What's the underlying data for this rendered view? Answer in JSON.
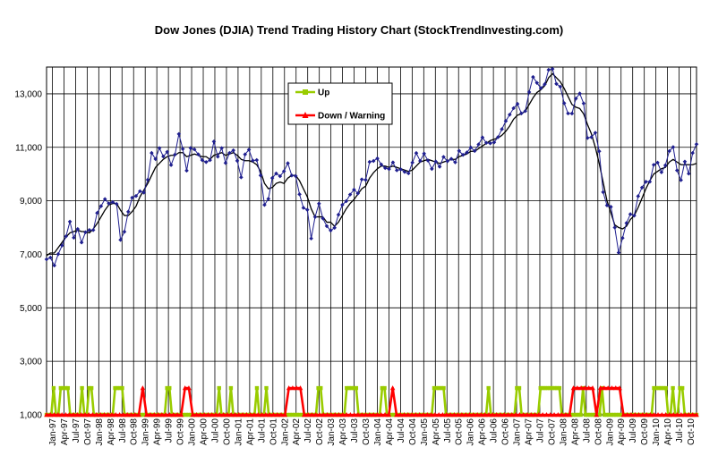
{
  "chart_data": {
    "type": "line",
    "title": "Dow Jones (DJIA) Trend Trading History Chart (StockTrendInvesting.com)",
    "xlabel": "",
    "ylabel": "",
    "ylim": [
      1000,
      14000
    ],
    "yticks": [
      1000,
      3000,
      5000,
      7000,
      9000,
      11000,
      13000
    ],
    "ytick_labels": [
      "1,000",
      "3,000",
      "5,000",
      "7,000",
      "9,000",
      "11,000",
      "13,000"
    ],
    "x_ticks": [
      "Jan-97",
      "Apr-97",
      "Jul-97",
      "Oct-97",
      "Jan-98",
      "Apr-98",
      "Jul-98",
      "Oct-98",
      "Jan-99",
      "Apr-99",
      "Jul-99",
      "Oct-99",
      "Jan-00",
      "Apr-00",
      "Jul-00",
      "Oct-00",
      "Jan-01",
      "Apr-01",
      "Jul-01",
      "Oct-01",
      "Jan-02",
      "Apr-02",
      "Jul-02",
      "Oct-02",
      "Jan-03",
      "Apr-03",
      "Jul-03",
      "Oct-03",
      "Jan-04",
      "Apr-04",
      "Jul-04",
      "Oct-04",
      "Jan-05",
      "Apr-05",
      "Jul-05",
      "Oct-05",
      "Jan-06",
      "Apr-06",
      "Jul-06",
      "Oct-06",
      "Jan-07",
      "Apr-07",
      "Jul-07",
      "Oct-07",
      "Jan-08",
      "Apr-08",
      "Jul-08",
      "Oct-08",
      "Jan-09",
      "Apr-09",
      "Jul-09",
      "Oct-09",
      "Jan-10",
      "Apr-10",
      "Jul-10",
      "Oct-10"
    ],
    "grid": true,
    "legend_position": "top-left",
    "colors": {
      "djia": "#1f1f8f",
      "trend": "#000000",
      "up": "#99cc00",
      "down": "#ff0000",
      "grid": "#000000"
    },
    "series": [
      {
        "name": "",
        "kind": "points",
        "values": [
          6813,
          6878,
          6583,
          7009,
          7331,
          7672,
          8222,
          7622,
          7945,
          7442,
          7823,
          7908,
          7907,
          8546,
          8800,
          9063,
          8900,
          8952,
          8883,
          7539,
          7843,
          8592,
          9117,
          9181,
          9359,
          9307,
          9786,
          10789,
          10560,
          10971,
          10655,
          10829,
          10337,
          10729,
          11497,
          10940,
          10128,
          10973,
          10921,
          10734,
          10522,
          10448,
          10522,
          11215,
          10651,
          10971,
          10415,
          10788,
          10887,
          10495,
          9879,
          10735,
          10912,
          10502,
          10523,
          9950,
          8848,
          9075,
          9852,
          10022,
          9920,
          10106,
          10404,
          9946,
          9925,
          9243,
          8737,
          8664,
          7592,
          8397,
          8896,
          8342,
          8054,
          7891,
          7992,
          8480,
          8850,
          8986,
          9234,
          9416,
          9276,
          9802,
          9782,
          10454,
          10488,
          10584,
          10358,
          10226,
          10188,
          10435,
          10140,
          10174,
          10080,
          10028,
          10428,
          10784,
          10489,
          10766,
          10504,
          10193,
          10467,
          10275,
          10641,
          10482,
          10569,
          10440,
          10865,
          10718,
          10805,
          10994,
          10864,
          11109,
          11367,
          11168,
          11150,
          11186,
          11381,
          11679,
          11981,
          12222,
          12463,
          12622,
          12269,
          12354,
          13063,
          13628,
          13409,
          13212,
          13358,
          13896,
          13930,
          13372,
          13265,
          12650,
          12266,
          12263,
          12820,
          13011,
          12639,
          11350,
          11378,
          11544,
          10851,
          9325,
          8829,
          8776,
          8001,
          7063,
          7609,
          8168,
          8500,
          8447,
          9172,
          9496,
          9712,
          9713,
          10345,
          10428,
          10067,
          10326,
          10857,
          11009,
          10137,
          9774,
          10466,
          10015,
          10788,
          11118
        ]
      },
      {
        "name": "",
        "kind": "line",
        "values": [
          6950,
          7050,
          7050,
          7250,
          7450,
          7650,
          7800,
          7850,
          7900,
          7850,
          7850,
          7800,
          7950,
          8150,
          8400,
          8650,
          8850,
          8900,
          8900,
          8650,
          8450,
          8450,
          8600,
          8800,
          9150,
          9400,
          9650,
          9950,
          10250,
          10400,
          10550,
          10650,
          10700,
          10700,
          10800,
          10800,
          10650,
          10700,
          10750,
          10700,
          10650,
          10650,
          10550,
          10700,
          10750,
          10800,
          10700,
          10750,
          10800,
          10700,
          10550,
          10500,
          10500,
          10450,
          10350,
          10100,
          9650,
          9450,
          9500,
          9650,
          9700,
          9650,
          9850,
          9950,
          9950,
          9750,
          9450,
          9150,
          8700,
          8400,
          8400,
          8400,
          8200,
          8200,
          8050,
          8200,
          8450,
          8700,
          8900,
          9050,
          9250,
          9450,
          9550,
          9850,
          10050,
          10200,
          10300,
          10300,
          10250,
          10300,
          10250,
          10200,
          10150,
          10100,
          10150,
          10300,
          10450,
          10500,
          10550,
          10500,
          10450,
          10400,
          10450,
          10500,
          10550,
          10550,
          10650,
          10700,
          10750,
          10850,
          10850,
          10950,
          11050,
          11150,
          11250,
          11300,
          11350,
          11450,
          11600,
          11800,
          12050,
          12200,
          12250,
          12350,
          12600,
          12850,
          13050,
          13150,
          13300,
          13600,
          13750,
          13600,
          13450,
          13200,
          12900,
          12600,
          12500,
          12450,
          12250,
          11850,
          11500,
          11000,
          10400,
          9700,
          9000,
          8550,
          8100,
          8000,
          7950,
          8050,
          8300,
          8450,
          8750,
          9100,
          9450,
          9750,
          10000,
          10100,
          10200,
          10250,
          10450,
          10550,
          10450,
          10350,
          10350,
          10350,
          10350,
          10400
        ]
      },
      {
        "name": "Up",
        "kind": "signal",
        "values": [
          0,
          0,
          0,
          1,
          0,
          0,
          1,
          1,
          1,
          1,
          0,
          0,
          0,
          0,
          0,
          1,
          0,
          0,
          1,
          1,
          0,
          0,
          0,
          0,
          0,
          0,
          0,
          0,
          0,
          1,
          1,
          1,
          1,
          0,
          0,
          0,
          0,
          0,
          0,
          0,
          0,
          0,
          0,
          0,
          0,
          0,
          0,
          0,
          0,
          0,
          0,
          1,
          1,
          0,
          0,
          0,
          0,
          0,
          0,
          0,
          0,
          0,
          0,
          0,
          0,
          0,
          0,
          0,
          0,
          0,
          0,
          0,
          0,
          1,
          0,
          0,
          0,
          0,
          1,
          0,
          0,
          0,
          0,
          0,
          0,
          0,
          0,
          0,
          0,
          1,
          0,
          0,
          0,
          1,
          0,
          0,
          0,
          0,
          0,
          0,
          0,
          0,
          0,
          0,
          0,
          0,
          0,
          0,
          0,
          0,
          0,
          0,
          0,
          0,
          0,
          1,
          1,
          0,
          0,
          0,
          0,
          0,
          0,
          0,
          0,
          0,
          0,
          1,
          1,
          1,
          1,
          1,
          0,
          0,
          0,
          0,
          0,
          0,
          0,
          0,
          0,
          0,
          1,
          1,
          0,
          0,
          0,
          0,
          0,
          0,
          0,
          0,
          0,
          0,
          0,
          0,
          0,
          0,
          0,
          0,
          0,
          0,
          0,
          0,
          1,
          1,
          1,
          1,
          1,
          0,
          0,
          0,
          0,
          0,
          0,
          0,
          0,
          0,
          0,
          0,
          0,
          0,
          0,
          0,
          0,
          0,
          0,
          1,
          0,
          0,
          0,
          0,
          0,
          0,
          0,
          0,
          0,
          0,
          0,
          1,
          1,
          0,
          0,
          0,
          0,
          0,
          0,
          0,
          0,
          1,
          1,
          1,
          1,
          1,
          1,
          1,
          1,
          1,
          0,
          0,
          0,
          0,
          0,
          0,
          0,
          0,
          0,
          1,
          0,
          0,
          0,
          0,
          0,
          0,
          0,
          1,
          0,
          0,
          0,
          0,
          0,
          0,
          0,
          0,
          0,
          0,
          0,
          0,
          0,
          0,
          0,
          0,
          0,
          0,
          0,
          0,
          0,
          1,
          1,
          1,
          1,
          1,
          1,
          0,
          0,
          1,
          0,
          0,
          1,
          1,
          0,
          0,
          0,
          0,
          0,
          0
        ]
      },
      {
        "name": "Down / Warning",
        "kind": "signal",
        "values": [
          0,
          0,
          0,
          0,
          0,
          0,
          0,
          0,
          0,
          0,
          0,
          0,
          0,
          0,
          0,
          0,
          0,
          0,
          0,
          0,
          0,
          0,
          0,
          0,
          0,
          1,
          0,
          0,
          0,
          0,
          0,
          0,
          0,
          0,
          0,
          0,
          1,
          1,
          0,
          0,
          0,
          0,
          0,
          0,
          0,
          0,
          0,
          0,
          0,
          0,
          0,
          0,
          0,
          0,
          0,
          0,
          0,
          0,
          0,
          0,
          0,
          0,
          0,
          1,
          1,
          1,
          1,
          0,
          0,
          0,
          0,
          0,
          0,
          0,
          0,
          0,
          0,
          0,
          0,
          0,
          0,
          0,
          0,
          0,
          0,
          0,
          0,
          0,
          0,
          0,
          1,
          0,
          0,
          0,
          0,
          0,
          0,
          0,
          0,
          0,
          0,
          0,
          0,
          0,
          0,
          0,
          0,
          0,
          0,
          0,
          0,
          0,
          0,
          0,
          0,
          0,
          0,
          0,
          0,
          0,
          0,
          0,
          0,
          0,
          0,
          0,
          0,
          0,
          0,
          0,
          0,
          0,
          0,
          0,
          0,
          0,
          0,
          1,
          1,
          1,
          1,
          1,
          1,
          0,
          1,
          1,
          1,
          1,
          1,
          1,
          0,
          0,
          0,
          0,
          0,
          0,
          0,
          0,
          0,
          0,
          0,
          0,
          0,
          0,
          0,
          0,
          0,
          0,
          0,
          0
        ]
      }
    ]
  }
}
